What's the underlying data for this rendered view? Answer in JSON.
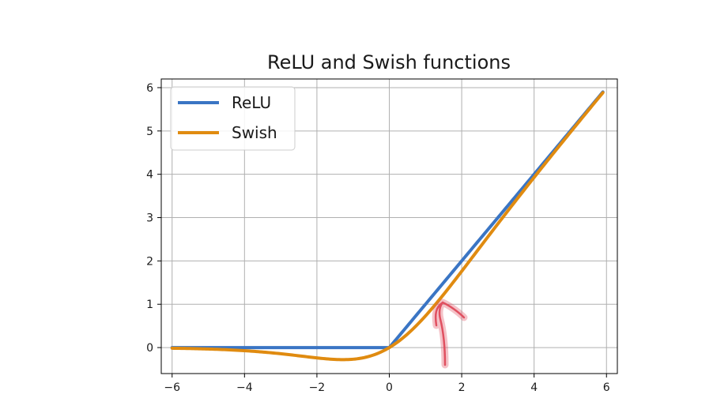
{
  "chart_data": {
    "type": "line",
    "title": "ReLU and Swish functions",
    "xlabel": "",
    "ylabel": "",
    "xlim": [
      -6.3,
      6.3
    ],
    "ylim": [
      -0.6,
      6.2
    ],
    "xticks": [
      -6,
      -4,
      -2,
      0,
      2,
      4,
      6
    ],
    "xtick_labels": [
      "−6",
      "−4",
      "−2",
      "0",
      "2",
      "4",
      "6"
    ],
    "yticks": [
      0,
      1,
      2,
      3,
      4,
      5,
      6
    ],
    "ytick_labels": [
      "0",
      "1",
      "2",
      "3",
      "4",
      "5",
      "6"
    ],
    "grid": true,
    "legend_position": "top-left",
    "series": [
      {
        "name": "ReLU",
        "color": "#3a75c4",
        "formula": "max(0, x)",
        "x": [
          -6,
          -5,
          -4,
          -3,
          -2,
          -1,
          0,
          1,
          2,
          3,
          4,
          5,
          5.9
        ],
        "y": [
          0,
          0,
          0,
          0,
          0,
          0,
          0,
          1,
          2,
          3,
          4,
          5,
          5.9
        ]
      },
      {
        "name": "Swish",
        "color": "#e08b10",
        "formula": "x * sigmoid(x)",
        "x": [
          -6,
          -5,
          -4,
          -3,
          -2,
          -1.28,
          -1,
          0,
          1,
          2,
          3,
          4,
          5,
          5.9
        ],
        "y": [
          -0.015,
          -0.033,
          -0.072,
          -0.142,
          -0.238,
          -0.278,
          -0.269,
          0,
          0.731,
          1.762,
          2.858,
          3.928,
          4.967,
          5.884
        ]
      }
    ]
  },
  "annotation": {
    "type": "hand-drawn-arrow",
    "color": "#e05060",
    "points_to": [
      1.4,
      1.0
    ]
  }
}
